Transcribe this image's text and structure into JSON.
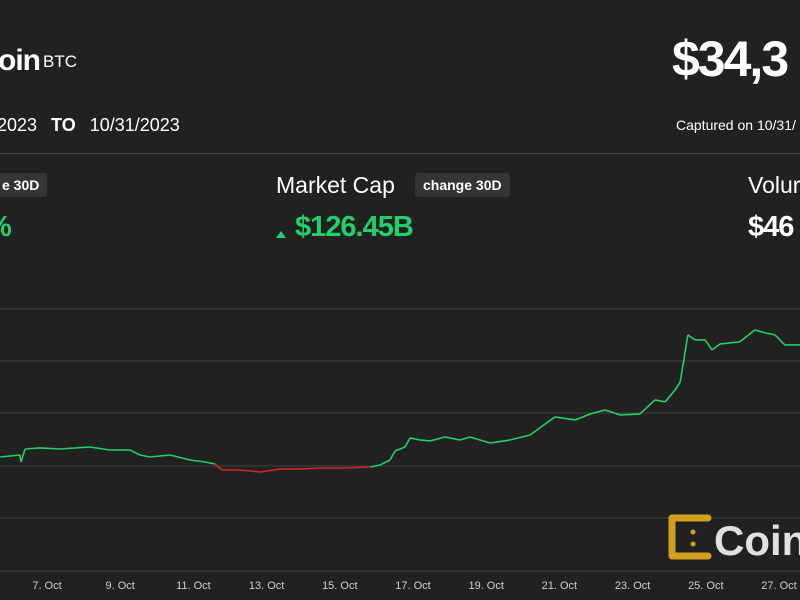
{
  "header": {
    "title": "oin",
    "ticker": "BTC",
    "price": "$34,3",
    "date_from": "2023",
    "date_to_label": "TO",
    "date_to": "10/31/2023",
    "captured": "Captured on 10/31/"
  },
  "metrics": [
    {
      "label": "",
      "badge": "e 30D",
      "value": "%"
    },
    {
      "label": "Market Cap",
      "badge": "change 30D",
      "value": "$126.45B",
      "direction": "up"
    },
    {
      "label": "Volur",
      "value": "$46"
    }
  ],
  "colors": {
    "up": "#20d16a",
    "down": "#d42323",
    "background": "#212121",
    "grid": "#3e3e3e"
  },
  "watermark": "CoinDesk",
  "chart_data": {
    "type": "line",
    "xlabel": "",
    "ylabel": "",
    "x_unit": "day of October 2023",
    "tick_labels": [
      "7. Oct",
      "9. Oct",
      "11. Oct",
      "13. Oct",
      "15. Oct",
      "17. Oct",
      "19. Oct",
      "21. Oct",
      "23. Oct",
      "25. Oct",
      "27. Oct"
    ],
    "tick_values": [
      7,
      9,
      11,
      13,
      15,
      17,
      19,
      21,
      23,
      25,
      27
    ],
    "grid": true,
    "color_threshold": 27000,
    "points": [
      [
        5.72,
        27344
      ],
      [
        6.26,
        27420
      ],
      [
        6.29,
        27153
      ],
      [
        6.4,
        27649
      ],
      [
        6.81,
        27688
      ],
      [
        7.36,
        27649
      ],
      [
        8.17,
        27726
      ],
      [
        8.72,
        27611
      ],
      [
        9.27,
        27611
      ],
      [
        9.54,
        27420
      ],
      [
        9.81,
        27344
      ],
      [
        10.36,
        27420
      ],
      [
        10.91,
        27229
      ],
      [
        11.32,
        27153
      ],
      [
        11.59,
        27076
      ],
      [
        11.78,
        26847
      ],
      [
        12.27,
        26847
      ],
      [
        12.82,
        26771
      ],
      [
        13.37,
        26885
      ],
      [
        13.91,
        26885
      ],
      [
        14.46,
        26924
      ],
      [
        15.14,
        26924
      ],
      [
        15.83,
        26962
      ],
      [
        16.1,
        27038
      ],
      [
        16.37,
        27229
      ],
      [
        16.51,
        27573
      ],
      [
        16.78,
        27726
      ],
      [
        16.92,
        28070
      ],
      [
        17.19,
        27993
      ],
      [
        17.46,
        27955
      ],
      [
        17.87,
        28108
      ],
      [
        18.28,
        27993
      ],
      [
        18.56,
        28108
      ],
      [
        19.1,
        27879
      ],
      [
        19.65,
        27993
      ],
      [
        20.2,
        28184
      ],
      [
        20.61,
        28604
      ],
      [
        20.88,
        28872
      ],
      [
        21.43,
        28757
      ],
      [
        21.84,
        28986
      ],
      [
        22.25,
        29139
      ],
      [
        22.66,
        28948
      ],
      [
        23.2,
        28986
      ],
      [
        23.61,
        29521
      ],
      [
        23.89,
        29445
      ],
      [
        24.16,
        29903
      ],
      [
        24.3,
        30209
      ],
      [
        24.4,
        31049
      ],
      [
        24.51,
        32004
      ],
      [
        24.7,
        31813
      ],
      [
        24.98,
        31813
      ],
      [
        25.17,
        31431
      ],
      [
        25.39,
        31660
      ],
      [
        25.93,
        31737
      ],
      [
        26.34,
        32195
      ],
      [
        26.62,
        32081
      ],
      [
        26.89,
        32004
      ],
      [
        27.16,
        31622
      ],
      [
        27.57,
        31622
      ]
    ]
  }
}
